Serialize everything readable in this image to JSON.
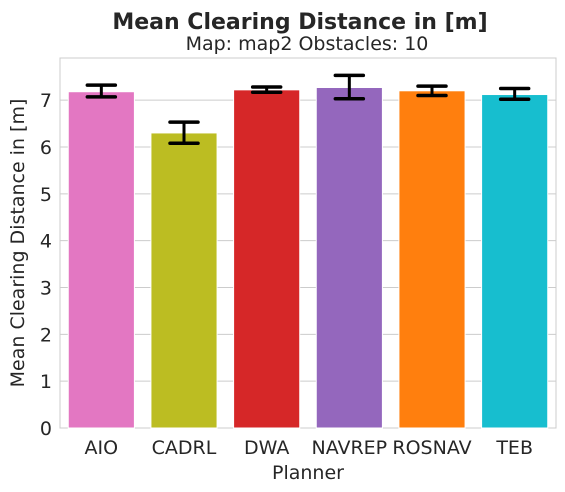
{
  "chart_data": {
    "type": "bar",
    "title": "Mean Clearing Distance in [m]",
    "subtitle": "Map: map2 Obstacles: 10",
    "xlabel": "Planner",
    "ylabel": "Mean Clearing Distance in [m]",
    "ylim": [
      0,
      7.9
    ],
    "yticks": [
      "0",
      "1",
      "2",
      "3",
      "4",
      "5",
      "6",
      "7"
    ],
    "grid": "horizontal",
    "categories": [
      "AIO",
      "CADRL",
      "DWA",
      "NAVREP",
      "ROSNAV",
      "TEB"
    ],
    "values": [
      7.18,
      6.3,
      7.22,
      7.27,
      7.2,
      7.12
    ],
    "error_low": [
      7.07,
      6.08,
      7.17,
      7.03,
      7.1,
      7.02
    ],
    "error_high": [
      7.32,
      6.53,
      7.28,
      7.53,
      7.3,
      7.25
    ],
    "colors": [
      "#e377c2",
      "#bcbd22",
      "#d62728",
      "#9467bd",
      "#ff7f0e",
      "#17becf"
    ]
  }
}
